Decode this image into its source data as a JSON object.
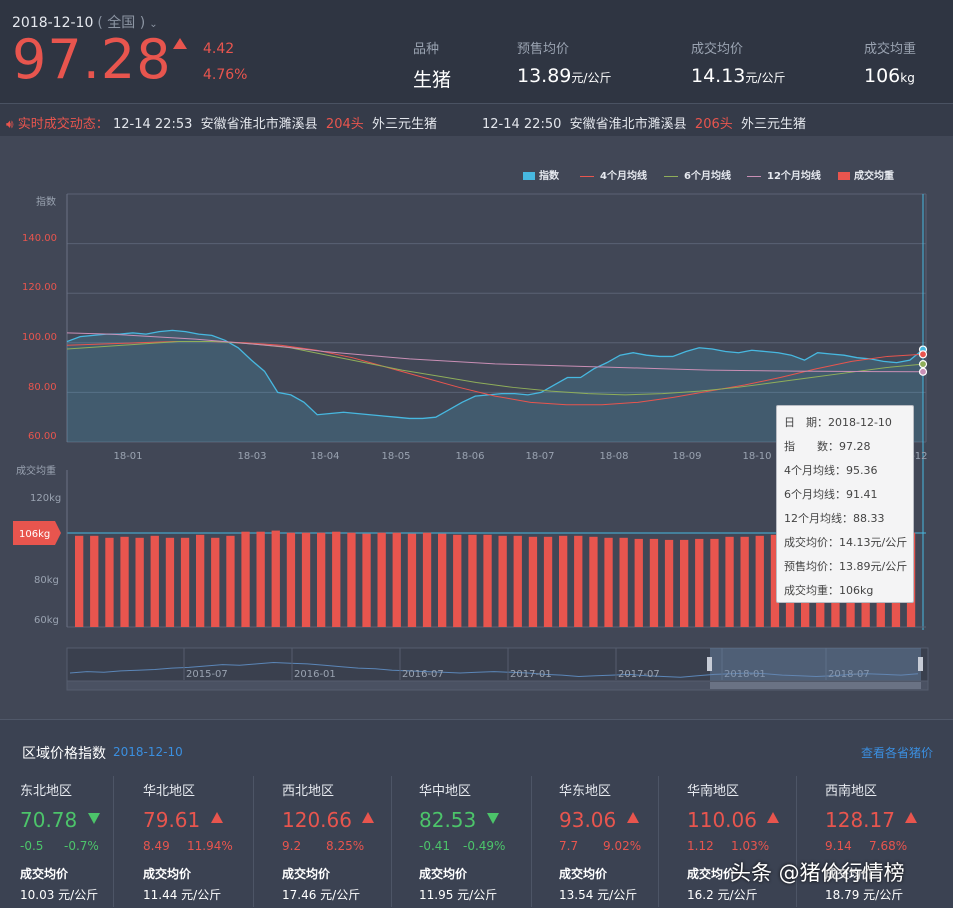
{
  "header": {
    "date": "2018-12-10",
    "scope": "( 全国 )",
    "scope_caret": "⌄",
    "price": "97.28",
    "change_abs": "4.42",
    "change_pct": "4.76%",
    "cols": [
      {
        "label": "品种",
        "value": "生猪",
        "unit": ""
      },
      {
        "label": "预售均价",
        "value": "13.89",
        "unit": "元/公斤"
      },
      {
        "label": "成交均价",
        "value": "14.13",
        "unit": "元/公斤"
      },
      {
        "label": "成交均重",
        "value": "106",
        "unit": "kg"
      }
    ]
  },
  "ticker": {
    "title": "实时成交动态：",
    "items": [
      {
        "time": "12-14 22:53",
        "place": "安徽省淮北市濉溪县",
        "count": "204头",
        "breed": "外三元生猪"
      },
      {
        "time": "12-14 22:50",
        "place": "安徽省淮北市濉溪县",
        "count": "206头",
        "breed": "外三元生猪"
      }
    ]
  },
  "colors": {
    "index": "#47b8e0",
    "m4": "#e8554e",
    "m6": "#8fae5a",
    "m12": "#c98fb5",
    "bar": "#e8554e",
    "up": "#e8554e",
    "down": "#4cc46a",
    "link": "#3b8fe0"
  },
  "chart_data": [
    {
      "type": "line",
      "legend": [
        "指数",
        "4个月均线",
        "6个月均线",
        "12个月均线",
        "成交均重"
      ],
      "ylabel": "指数",
      "ylim": [
        60,
        160
      ],
      "yticks": [
        "60.00",
        "80.00",
        "100.00",
        "120.00",
        "140.00"
      ],
      "xticks": [
        "18-01",
        "18-03",
        "18-04",
        "18-05",
        "18-06",
        "18-07",
        "18-08",
        "18-09",
        "18-10",
        "18-12"
      ],
      "series": [
        {
          "name": "指数",
          "values": [
            100.5,
            102.5,
            103,
            103.5,
            103.5,
            104,
            103.5,
            104.5,
            105,
            104.5,
            103.5,
            103,
            101,
            98,
            93,
            88.5,
            80,
            79,
            76,
            71,
            71.5,
            72,
            71.5,
            71,
            70.5,
            70,
            69.5,
            69.5,
            70,
            73,
            76,
            78.5,
            79,
            79.5,
            79.5,
            79,
            80,
            83,
            86,
            86,
            89.5,
            92,
            95,
            96,
            95,
            94.5,
            94.5,
            96.5,
            98,
            97.5,
            96.5,
            96,
            97,
            96.5,
            96,
            95,
            93,
            96,
            95.5,
            95,
            94,
            93.5,
            92.5,
            92,
            93,
            97.28
          ]
        },
        {
          "name": "4个月均线",
          "values": [
            99,
            99.5,
            100,
            100.5,
            100.5,
            100,
            99,
            97,
            94,
            90,
            86,
            82,
            78.5,
            76,
            75,
            75,
            76,
            78,
            80.5,
            83,
            86,
            89.5,
            92.5,
            94.5,
            95.36
          ]
        },
        {
          "name": "6个月均线",
          "values": [
            97.5,
            98.5,
            99.5,
            100.5,
            100.5,
            99.5,
            98,
            95,
            92,
            89,
            86.5,
            84,
            82,
            80.5,
            79.5,
            79,
            79.5,
            80.5,
            82,
            84,
            86,
            88,
            90,
            91.41
          ]
        },
        {
          "name": "12个月均线",
          "values": [
            104,
            103.5,
            102.5,
            101.5,
            100,
            98.5,
            96.5,
            95,
            93.5,
            92.5,
            91.5,
            91,
            90.5,
            90,
            89.5,
            89,
            88.8,
            88.6,
            88.5,
            88.4,
            88.33
          ]
        }
      ]
    },
    {
      "type": "bar",
      "legend": "成交均重",
      "ylabel": "成交均重",
      "ylim": [
        60,
        130
      ],
      "yticks": [
        "60kg",
        "80kg",
        "120kg"
      ],
      "current_label": "106kg",
      "values": [
        104.5,
        104.5,
        103.5,
        104,
        103.5,
        104.5,
        103.5,
        103.5,
        105,
        103.5,
        104.5,
        106.5,
        106.5,
        107,
        106,
        106,
        106,
        106.5,
        106,
        105.5,
        106,
        106,
        105.5,
        106,
        105.5,
        105,
        105,
        105,
        104.5,
        104.5,
        104,
        104,
        104.5,
        104.5,
        104,
        103.5,
        103.5,
        103,
        103,
        102.5,
        102.5,
        103,
        103,
        104,
        104,
        104.5,
        105,
        105,
        105.5,
        105,
        105,
        105,
        106,
        106,
        106,
        106
      ]
    }
  ],
  "navigator": {
    "labels": [
      "2015-07",
      "2016-01",
      "2016-07",
      "2017-01",
      "2017-07",
      "2018-01",
      "2018-07"
    ],
    "values": [
      40,
      42,
      41,
      43,
      44,
      45,
      47,
      48,
      50,
      52,
      51,
      53,
      55,
      54,
      53,
      51,
      49,
      47,
      46,
      44,
      43,
      42,
      41,
      40,
      41,
      42,
      41,
      40,
      38,
      37,
      35,
      36,
      37,
      38,
      36,
      35,
      34,
      36,
      38,
      39,
      40,
      39,
      37,
      36,
      35,
      36,
      38,
      39,
      38,
      37,
      39
    ]
  },
  "tooltip": {
    "lines": [
      "日　期：2018-12-10",
      "指　　数：97.28",
      "4个月均线：95.36",
      "6个月均线：91.41",
      "12个月均线：88.33",
      "成交均价：14.13元/公斤",
      "预售均价：13.89元/公斤",
      "成交均重：106kg"
    ]
  },
  "region": {
    "title": "区域价格指数",
    "date": "2018-12-10",
    "link": "查看各省猪价",
    "avg_label": "成交均价",
    "cards": [
      {
        "name": "东北地区",
        "price": "70.78",
        "dir": "down",
        "abs": "-0.5",
        "pct": "-0.7%",
        "avg": "10.03 元/公斤"
      },
      {
        "name": "华北地区",
        "price": "79.61",
        "dir": "up",
        "abs": "8.49",
        "pct": "11.94%",
        "avg": "11.44 元/公斤"
      },
      {
        "name": "西北地区",
        "price": "120.66",
        "dir": "up",
        "abs": "9.2",
        "pct": "8.25%",
        "avg": "17.46 元/公斤"
      },
      {
        "name": "华中地区",
        "price": "82.53",
        "dir": "down",
        "abs": "-0.41",
        "pct": "-0.49%",
        "avg": "11.95 元/公斤"
      },
      {
        "name": "华东地区",
        "price": "93.06",
        "dir": "up",
        "abs": "7.7",
        "pct": "9.02%",
        "avg": "13.54 元/公斤"
      },
      {
        "name": "华南地区",
        "price": "110.06",
        "dir": "up",
        "abs": "1.12",
        "pct": "1.03%",
        "avg": "16.2 元/公斤"
      },
      {
        "name": "西南地区",
        "price": "128.17",
        "dir": "up",
        "abs": "9.14",
        "pct": "7.68%",
        "avg": "18.79 元/公斤"
      }
    ]
  },
  "watermark": "头条 @猪价行情榜"
}
